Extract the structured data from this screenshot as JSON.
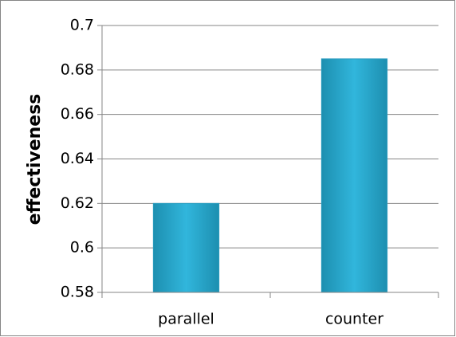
{
  "chart_data": {
    "type": "bar",
    "y_label": "effectiveness",
    "categories": [
      "parallel",
      "counter"
    ],
    "values": [
      0.62,
      0.685
    ],
    "color": "#31b6dc",
    "ylim": [
      0.58,
      0.7
    ],
    "yticks": [
      0.58,
      0.6,
      0.62,
      0.64,
      0.66,
      0.68,
      0.7
    ],
    "grid": true
  }
}
